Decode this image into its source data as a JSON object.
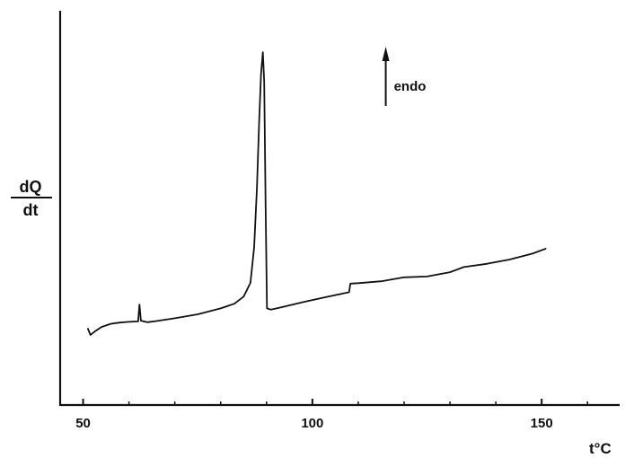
{
  "chart_data": {
    "type": "line",
    "ylabel_num": "dQ",
    "ylabel_den": "dt",
    "xlabel": "t°C",
    "annotation": "endo",
    "annotation_x": 116,
    "xlim": [
      45,
      167
    ],
    "ylim": [
      0,
      100
    ],
    "x_ticks": [
      {
        "value": 50,
        "label": "50"
      },
      {
        "value": 100,
        "label": "100"
      },
      {
        "value": 150,
        "label": "150"
      }
    ],
    "minor_ticks": [
      60,
      70,
      80,
      90,
      110,
      120,
      130,
      140,
      160
    ],
    "series": [
      {
        "points": [
          [
            51.0,
            19.5
          ],
          [
            51.6,
            17.8
          ],
          [
            52.5,
            18.6
          ],
          [
            54,
            19.8
          ],
          [
            56,
            20.6
          ],
          [
            58,
            20.9
          ],
          [
            60,
            21.1
          ],
          [
            62,
            21.2
          ],
          [
            62.3,
            25.5
          ],
          [
            62.6,
            21.4
          ],
          [
            64,
            21.0
          ],
          [
            66,
            21.3
          ],
          [
            70,
            22.0
          ],
          [
            75,
            23.0
          ],
          [
            80,
            24.5
          ],
          [
            83,
            25.7
          ],
          [
            85,
            27.5
          ],
          [
            86.5,
            31.0
          ],
          [
            87.3,
            40.0
          ],
          [
            87.9,
            55.0
          ],
          [
            88.4,
            72.0
          ],
          [
            88.8,
            84.0
          ],
          [
            89.2,
            89.5
          ],
          [
            89.5,
            82.0
          ],
          [
            89.8,
            50.0
          ],
          [
            90.1,
            24.5
          ],
          [
            91,
            24.2
          ],
          [
            94,
            25.0
          ],
          [
            98,
            26.1
          ],
          [
            103,
            27.4
          ],
          [
            108,
            28.6
          ],
          [
            108.3,
            30.8
          ],
          [
            110,
            30.9
          ],
          [
            115,
            31.4
          ],
          [
            120,
            32.4
          ],
          [
            125,
            32.6
          ],
          [
            130,
            33.7
          ],
          [
            133,
            35.0
          ],
          [
            138,
            35.8
          ],
          [
            143,
            36.9
          ],
          [
            148,
            38.4
          ],
          [
            151,
            39.7
          ]
        ]
      }
    ]
  }
}
